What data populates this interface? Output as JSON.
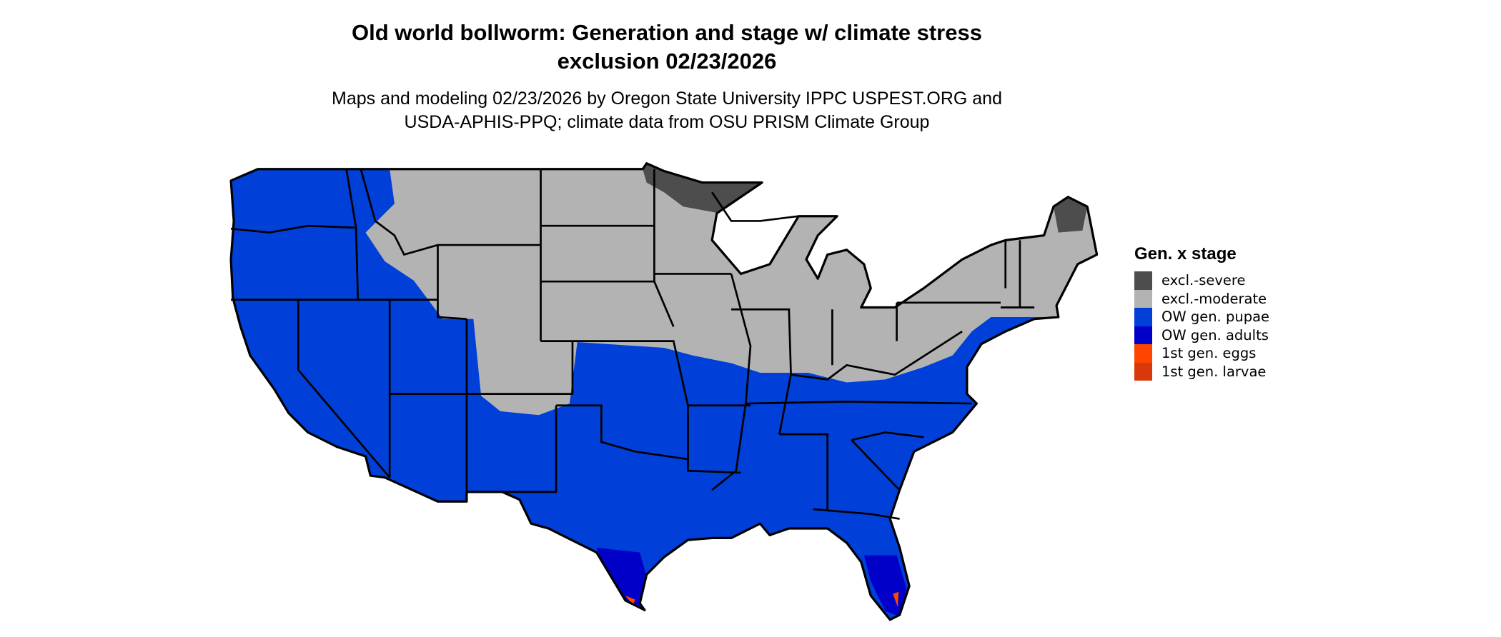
{
  "title_line1": "Old world bollworm: Generation and stage w/ climate stress",
  "title_line2": "exclusion 02/23/2026",
  "subtitle_line1": "Maps and modeling 02/23/2026 by Oregon State University IPPC USPEST.ORG and",
  "subtitle_line2": "USDA-APHIS-PPQ; climate data from OSU PRISM Climate Group",
  "legend": {
    "title": "Gen. x stage",
    "items": [
      {
        "label": "excl.-severe",
        "color": "#4d4d4d"
      },
      {
        "label": "excl.-moderate",
        "color": "#b3b3b3"
      },
      {
        "label": "OW gen. pupae",
        "color": "#0040d8"
      },
      {
        "label": "OW gen. adults",
        "color": "#0000c8"
      },
      {
        "label": "1st gen. eggs",
        "color": "#ff4500"
      },
      {
        "label": "1st gen. larvae",
        "color": "#d8380c"
      }
    ]
  }
}
